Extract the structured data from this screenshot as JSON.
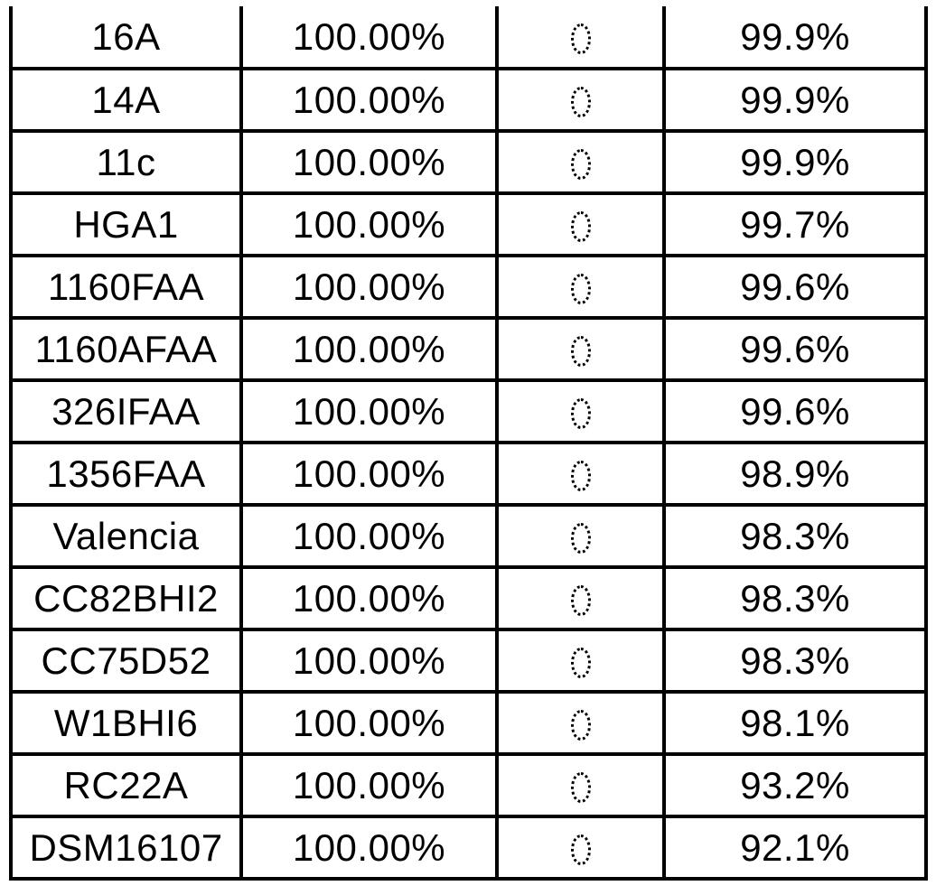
{
  "table": {
    "description_colors": {
      "border": "#000000",
      "text": "#000000",
      "background": "#ffffff"
    },
    "rows": [
      [
        "16A",
        "100.00%",
        "0",
        "99.9%"
      ],
      [
        "14A",
        "100.00%",
        "0",
        "99.9%"
      ],
      [
        "11c",
        "100.00%",
        "0",
        "99.9%"
      ],
      [
        "HGA1",
        "100.00%",
        "0",
        "99.7%"
      ],
      [
        "1160FAA",
        "100.00%",
        "0",
        "99.6%"
      ],
      [
        "1160AFAA",
        "100.00%",
        "0",
        "99.6%"
      ],
      [
        "326IFAA",
        "100.00%",
        "0",
        "99.6%"
      ],
      [
        "1356FAA",
        "100.00%",
        "0",
        "98.9%"
      ],
      [
        "Valencia",
        "100.00%",
        "0",
        "98.3%"
      ],
      [
        "CC82BHI2",
        "100.00%",
        "0",
        "98.3%"
      ],
      [
        "CC75D52",
        "100.00%",
        "0",
        "98.3%"
      ],
      [
        "W1BHI6",
        "100.00%",
        "0",
        "98.1%"
      ],
      [
        "RC22A",
        "100.00%",
        "0",
        "93.2%"
      ],
      [
        "DSM16107",
        "100.00%",
        "0",
        "92.1%"
      ]
    ]
  },
  "chart_data": {
    "type": "table",
    "title": "",
    "columns": [
      "",
      "",
      "",
      ""
    ],
    "rows": [
      [
        "16A",
        "100.00%",
        "0",
        "99.9%"
      ],
      [
        "14A",
        "100.00%",
        "0",
        "99.9%"
      ],
      [
        "11c",
        "100.00%",
        "0",
        "99.9%"
      ],
      [
        "HGA1",
        "100.00%",
        "0",
        "99.7%"
      ],
      [
        "1160FAA",
        "100.00%",
        "0",
        "99.6%"
      ],
      [
        "1160AFAA",
        "100.00%",
        "0",
        "99.6%"
      ],
      [
        "326IFAA",
        "100.00%",
        "0",
        "99.6%"
      ],
      [
        "1356FAA",
        "100.00%",
        "0",
        "98.9%"
      ],
      [
        "Valencia",
        "100.00%",
        "0",
        "98.3%"
      ],
      [
        "CC82BHI2",
        "100.00%",
        "0",
        "98.3%"
      ],
      [
        "CC75D52",
        "100.00%",
        "0",
        "98.3%"
      ],
      [
        "W1BHI6",
        "100.00%",
        "0",
        "98.1%"
      ],
      [
        "RC22A",
        "100.00%",
        "0",
        "93.2%"
      ],
      [
        "DSM16107",
        "100.00%",
        "0",
        "92.1%"
      ]
    ]
  }
}
